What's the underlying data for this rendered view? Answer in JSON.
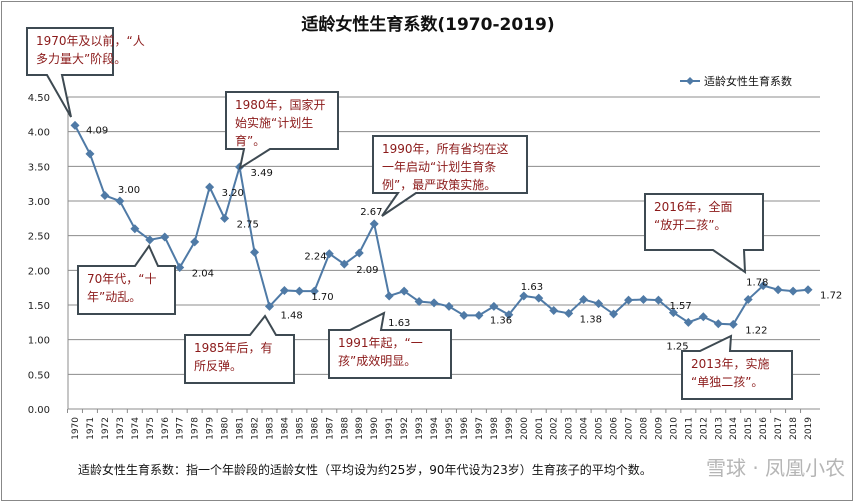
{
  "chart_data": {
    "type": "line",
    "title": "适龄女性生育系数(1970-2019)",
    "xlabel": "",
    "ylabel": "",
    "ylim": [
      0,
      4.5
    ],
    "yticks": [
      "0.00",
      "0.50",
      "1.00",
      "1.50",
      "2.00",
      "2.50",
      "3.00",
      "3.50",
      "4.00",
      "4.50"
    ],
    "grid": true,
    "legend_position": "top-right",
    "series": [
      {
        "name": "适龄女性生育系数",
        "color": "#4f7aa6",
        "x": [
          1970,
          1971,
          1972,
          1973,
          1974,
          1975,
          1976,
          1977,
          1978,
          1979,
          1980,
          1981,
          1982,
          1983,
          1984,
          1985,
          1986,
          1987,
          1988,
          1989,
          1990,
          1991,
          1992,
          1993,
          1994,
          1995,
          1996,
          1997,
          1998,
          1999,
          2000,
          2001,
          2002,
          2003,
          2004,
          2005,
          2006,
          2007,
          2008,
          2009,
          2010,
          2011,
          2012,
          2013,
          2014,
          2015,
          2016,
          2017,
          2018,
          2019
        ],
        "values": [
          4.09,
          3.68,
          3.08,
          3.0,
          2.6,
          2.44,
          2.48,
          2.04,
          2.41,
          3.2,
          2.75,
          3.49,
          2.26,
          1.48,
          1.71,
          1.7,
          1.7,
          2.24,
          2.09,
          2.25,
          2.67,
          1.63,
          1.7,
          1.55,
          1.53,
          1.48,
          1.35,
          1.35,
          1.48,
          1.36,
          1.63,
          1.6,
          1.42,
          1.38,
          1.58,
          1.52,
          1.37,
          1.57,
          1.58,
          1.57,
          1.39,
          1.25,
          1.33,
          1.23,
          1.22,
          1.58,
          1.78,
          1.72,
          1.7,
          1.72
        ]
      }
    ],
    "data_labels": [
      {
        "year": 1970,
        "text": "4.09"
      },
      {
        "year": 1973,
        "text": "3.00"
      },
      {
        "year": 1977,
        "text": "2.04"
      },
      {
        "year": 1979,
        "text": "3.20"
      },
      {
        "year": 1980,
        "text": "2.75"
      },
      {
        "year": 1981,
        "text": "3.49"
      },
      {
        "year": 1983,
        "text": "1.48"
      },
      {
        "year": 1986,
        "text": "1.70"
      },
      {
        "year": 1987,
        "text": "2.24"
      },
      {
        "year": 1988,
        "text": "2.09"
      },
      {
        "year": 1990,
        "text": "2.67"
      },
      {
        "year": 1991,
        "text": "1.63"
      },
      {
        "year": 1999,
        "text": "1.36"
      },
      {
        "year": 2000,
        "text": "1.63"
      },
      {
        "year": 2003,
        "text": "1.38"
      },
      {
        "year": 2009,
        "text": "1.57"
      },
      {
        "year": 2011,
        "text": "1.25"
      },
      {
        "year": 2014,
        "text": "1.22"
      },
      {
        "year": 2016,
        "text": "1.78"
      },
      {
        "year": 2019,
        "text": "1.72"
      }
    ],
    "annotations": [
      {
        "lines": [
          "1970年及以前，“人",
          "多力量大”阶段。"
        ]
      },
      {
        "lines": [
          "1980年，国家开",
          "始实施“计划生",
          "育”。"
        ]
      },
      {
        "lines": [
          "1990年，所有省均在这",
          "一年启动“计划生育条",
          "例”，最严政策实施。"
        ]
      },
      {
        "lines": [
          "70年代，“十",
          "年”动乱。"
        ]
      },
      {
        "lines": [
          "1985年后，有",
          "所反弹。"
        ]
      },
      {
        "lines": [
          "1991年起，“一",
          "孩”成效明显。"
        ]
      },
      {
        "lines": [
          "2016年，全面",
          "“放开二孩”。"
        ]
      },
      {
        "lines": [
          "2013年，实施",
          "“单独二孩”。"
        ]
      }
    ],
    "annotation_color": "#8b1a1a"
  },
  "footnote": "适龄女性生育系数：指一个年龄段的适龄女性（平均设为约25岁，90年代设为23岁）生育孩子的平均个数。",
  "watermark": "雪球 · 凤凰小农"
}
